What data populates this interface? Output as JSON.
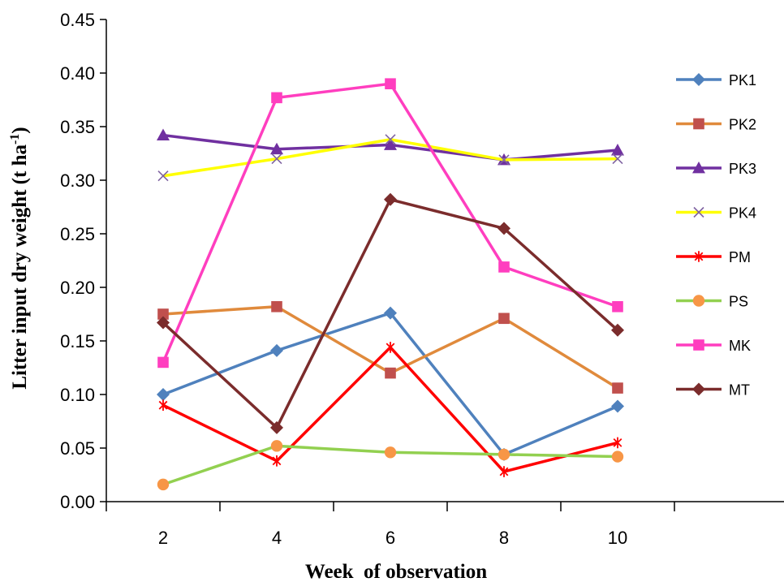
{
  "chart_data": {
    "type": "line",
    "title": "",
    "xlabel": "Week  of observation",
    "ylabel": {
      "main": "Litter input dry weight (t ha",
      "sup": "-1",
      "close": ")"
    },
    "x": [
      2,
      4,
      6,
      8,
      10
    ],
    "x_ticks": [
      "2",
      "4",
      "6",
      "8",
      "10"
    ],
    "xlim": [
      1,
      13
    ],
    "ylim": [
      0,
      0.45
    ],
    "y_ticks": [
      "0.00",
      "0.05",
      "0.10",
      "0.15",
      "0.20",
      "0.25",
      "0.30",
      "0.35",
      "0.40",
      "0.45"
    ],
    "grid": false,
    "legend_position": "right",
    "series": [
      {
        "name": "PK1",
        "color": "#4F81BD",
        "marker": "diamond",
        "marker_color": "#4F81BD",
        "values": [
          0.1,
          0.141,
          0.176,
          0.044,
          0.089
        ]
      },
      {
        "name": "PK2",
        "color": "#E08A3C",
        "marker": "square",
        "marker_color": "#C0504D",
        "values": [
          0.175,
          0.182,
          0.12,
          0.171,
          0.106
        ]
      },
      {
        "name": "PK3",
        "color": "#7030A0",
        "marker": "triangle",
        "marker_color": "#7030A0",
        "values": [
          0.342,
          0.329,
          0.333,
          0.319,
          0.328
        ]
      },
      {
        "name": "PK4",
        "color": "#FFFF00",
        "marker": "x",
        "marker_color": "#8064A2",
        "values": [
          0.304,
          0.32,
          0.338,
          0.319,
          0.32
        ]
      },
      {
        "name": "PM",
        "color": "#FF0000",
        "marker": "star",
        "marker_color": "#FF0000",
        "values": [
          0.09,
          0.038,
          0.144,
          0.028,
          0.055
        ]
      },
      {
        "name": "PS",
        "color": "#92D050",
        "marker": "circle",
        "marker_color": "#F79646",
        "values": [
          0.016,
          0.052,
          0.046,
          0.044,
          0.042
        ]
      },
      {
        "name": "MK",
        "color": "#FF3EBF",
        "marker": "square",
        "marker_color": "#FF3EBF",
        "values": [
          0.13,
          0.377,
          0.39,
          0.219,
          0.182
        ]
      },
      {
        "name": "MT",
        "color": "#7B2C2C",
        "marker": "diamond",
        "marker_color": "#7B2C2C",
        "values": [
          0.167,
          0.069,
          0.282,
          0.255,
          0.16
        ]
      }
    ]
  }
}
